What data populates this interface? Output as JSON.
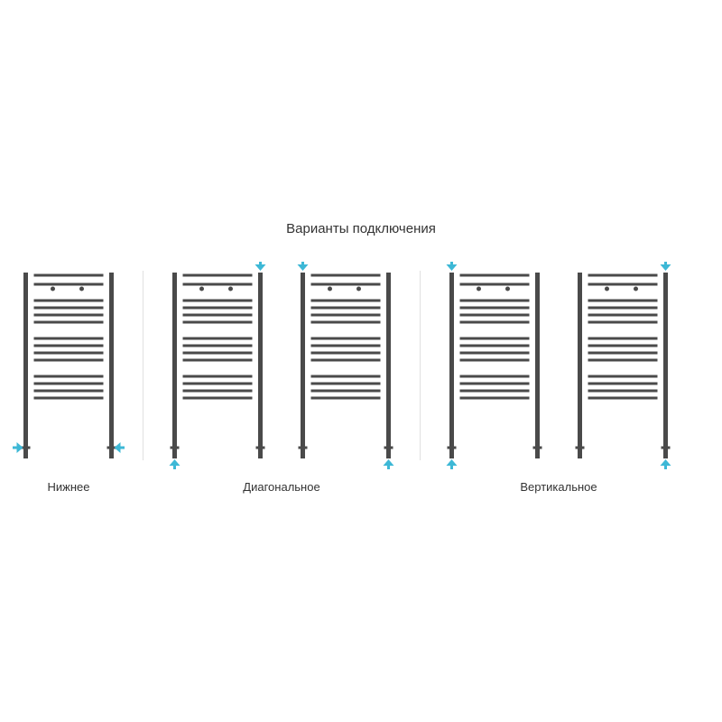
{
  "title": "Варианты подключения",
  "title_fontsize": 15,
  "colors": {
    "background": "#ffffff",
    "radiator_stroke": "#4a4a4a",
    "arrow": "#3db8d6",
    "separator": "#e0e0e0",
    "text": "#333333"
  },
  "radiator": {
    "width": 100,
    "height": 190,
    "vertical_stroke_width": 5,
    "bar_stroke_width": 3,
    "bar_margin": 9,
    "bar_groups": [
      {
        "count": 2,
        "gap": 10
      },
      {
        "count": 4,
        "gap": 8
      },
      {
        "count": 4,
        "gap": 8
      },
      {
        "count": 4,
        "gap": 8
      }
    ],
    "group_gap": 18,
    "valve_radius": 2.5,
    "valve_y_offset": 18,
    "feet_extend": 16
  },
  "arrow": {
    "shaft_len": 10,
    "shaft_width": 3,
    "head_len": 7,
    "head_half_width": 6
  },
  "groups": [
    {
      "label": "Нижнее",
      "radiators": [
        {
          "arrows": [
            {
              "dir": "right",
              "side": "left",
              "y": "bottom"
            },
            {
              "dir": "left",
              "side": "right",
              "y": "bottom"
            }
          ]
        }
      ]
    },
    {
      "label": "Диагональное",
      "radiators": [
        {
          "arrows": [
            {
              "dir": "down",
              "side": "right",
              "y": "top"
            },
            {
              "dir": "up",
              "side": "left",
              "y": "bottom"
            }
          ]
        },
        {
          "arrows": [
            {
              "dir": "down",
              "side": "left",
              "y": "top"
            },
            {
              "dir": "up",
              "side": "right",
              "y": "bottom"
            }
          ]
        }
      ]
    },
    {
      "label": "Вертикальное",
      "radiators": [
        {
          "arrows": [
            {
              "dir": "down",
              "side": "left",
              "y": "top"
            },
            {
              "dir": "up",
              "side": "left",
              "y": "bottom"
            }
          ]
        },
        {
          "arrows": [
            {
              "dir": "down",
              "side": "right",
              "y": "top"
            },
            {
              "dir": "up",
              "side": "right",
              "y": "bottom"
            }
          ]
        }
      ]
    }
  ],
  "label_fontsize": 13
}
